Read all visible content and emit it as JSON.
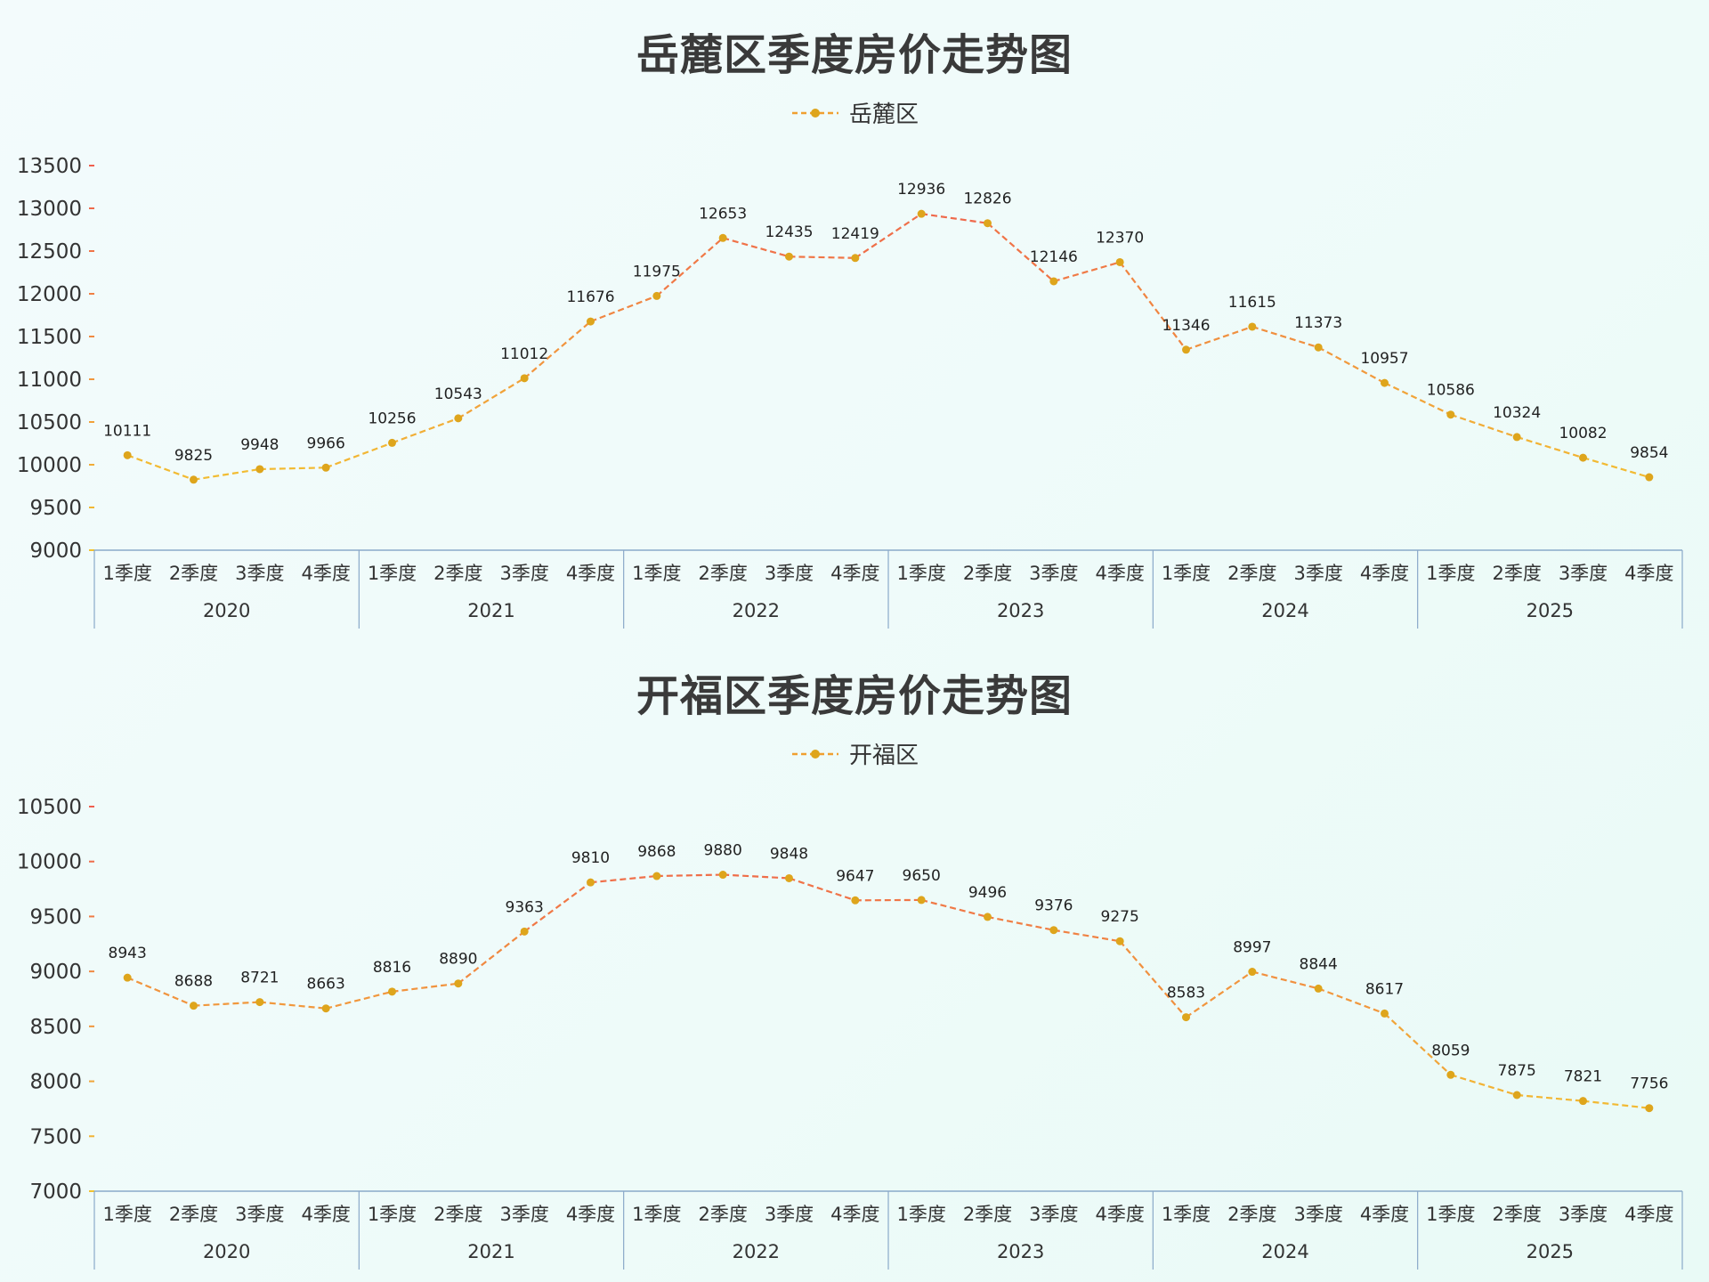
{
  "colors": {
    "line_low": "#f2c230",
    "line_high": "#ef5e4e",
    "marker": "#dea51c",
    "axis": "#8aa9c9"
  },
  "chart_data": [
    {
      "type": "line",
      "title": "岳麓区季度房价走势图",
      "legend_position": "top-center",
      "years": [
        "2020",
        "2021",
        "2022",
        "2023",
        "2024",
        "2025"
      ],
      "quarters": [
        "1季度",
        "2季度",
        "3季度",
        "4季度"
      ],
      "ylim": [
        9000,
        13500
      ],
      "yticks": [
        9000,
        9500,
        10000,
        10500,
        11000,
        11500,
        12000,
        12500,
        13000,
        13500
      ],
      "grid": false,
      "line_style": "dashed",
      "series": [
        {
          "name": "岳麓区",
          "values": [
            10111,
            9825,
            9948,
            9966,
            10256,
            10543,
            11012,
            11676,
            11975,
            12653,
            12435,
            12419,
            12936,
            12826,
            12146,
            12370,
            11346,
            11615,
            11373,
            10957,
            10586,
            10324,
            10082,
            9854
          ]
        }
      ]
    },
    {
      "type": "line",
      "title": "开福区季度房价走势图",
      "legend_position": "top-center",
      "years": [
        "2020",
        "2021",
        "2022",
        "2023",
        "2024",
        "2025"
      ],
      "quarters": [
        "1季度",
        "2季度",
        "3季度",
        "4季度"
      ],
      "ylim": [
        7000,
        10500
      ],
      "yticks": [
        7000,
        7500,
        8000,
        8500,
        9000,
        9500,
        10000,
        10500
      ],
      "grid": false,
      "line_style": "dashed",
      "series": [
        {
          "name": "开福区",
          "values": [
            8943,
            8688,
            8721,
            8663,
            8816,
            8890,
            9363,
            9810,
            9868,
            9880,
            9848,
            9647,
            9650,
            9496,
            9376,
            9275,
            8583,
            8997,
            8844,
            8617,
            8059,
            7875,
            7821,
            7756
          ]
        }
      ]
    }
  ]
}
